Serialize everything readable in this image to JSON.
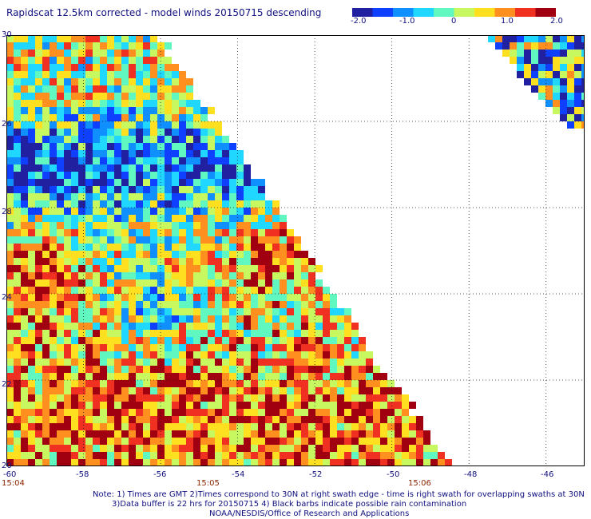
{
  "title": "Rapidscat 12.5km corrected - model winds 20150715 descending",
  "colorbar": {
    "labels": [
      "-2.0",
      "-1.0",
      "0",
      "1.0",
      "2.0"
    ],
    "range": [
      -2.0,
      2.0
    ],
    "colors": [
      "#2020a0",
      "#1040ff",
      "#1090ff",
      "#20d8ff",
      "#60f8c0",
      "#c8f860",
      "#ffe020",
      "#ff9020",
      "#f03020",
      "#a00010"
    ]
  },
  "map": {
    "lon_range": [
      -60,
      -45
    ],
    "lat_range": [
      20,
      30
    ],
    "lon_labels": [
      "-60",
      "-58",
      "-56",
      "-54",
      "-52",
      "-50",
      "-48",
      "-46"
    ],
    "lat_labels": [
      "30",
      "28",
      "26",
      "24",
      "22",
      "20"
    ],
    "times": [
      "15:04",
      "15:05",
      "15:06"
    ]
  },
  "notes": {
    "line1": "Note: 1) Times are GMT 2)Times correspond to 30N at right swath edge - time is right swath for overlapping swaths at 30N",
    "line2": "3)Data buffer is 22 hrs for 20150715 4) Black barbs indicate possible rain contamination",
    "line3": "NOAA/NESDIS/Office of Research and Applications"
  }
}
